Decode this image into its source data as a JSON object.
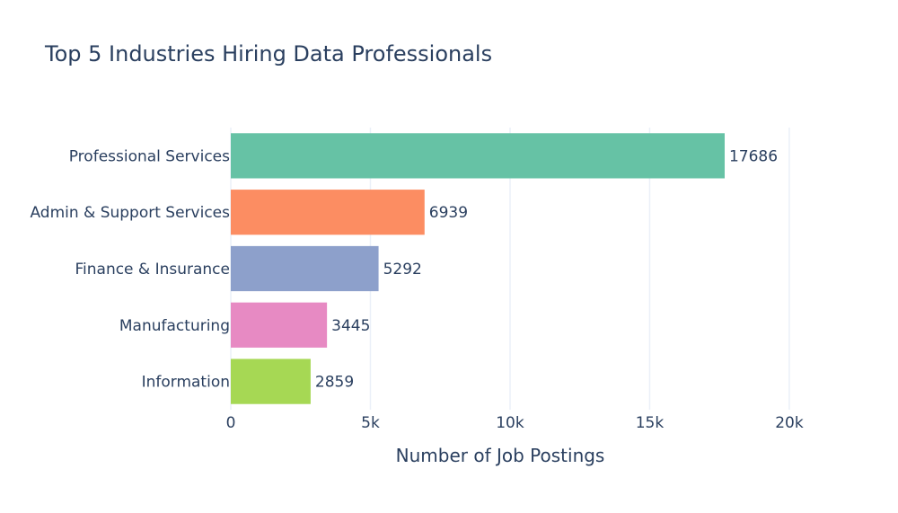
{
  "chart_data": {
    "type": "bar",
    "orientation": "horizontal",
    "title": "Top 5 Industries Hiring Data Professionals",
    "xlabel": "Number of Job Postings",
    "ylabel": "",
    "categories": [
      "Professional Services",
      "Admin & Support Services",
      "Finance & Insurance",
      "Manufacturing",
      "Information"
    ],
    "values": [
      17686,
      6939,
      5292,
      3445,
      2859
    ],
    "value_labels": [
      "17686",
      "6939",
      "5292",
      "3445",
      "2859"
    ],
    "colors": [
      "#66c2a5",
      "#fc8d62",
      "#8da0cb",
      "#e78ac3",
      "#a6d854"
    ],
    "xlim": [
      0,
      23700
    ],
    "x_ticks": [
      0,
      5000,
      10000,
      15000,
      20000
    ],
    "x_tick_labels": [
      "0",
      "5k",
      "10k",
      "15k",
      "20k"
    ],
    "grid": true,
    "legend": "none",
    "text_color": "#2a3f5f",
    "grid_color": "#ebf0f8"
  }
}
